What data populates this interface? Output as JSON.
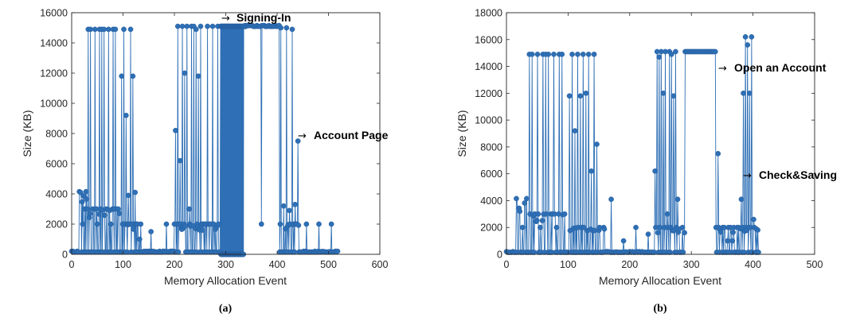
{
  "chart_data": [
    {
      "type": "line",
      "caption": "(a)",
      "xlabel": "Memory Allocation Event",
      "ylabel": "Size (KB)",
      "xlim": [
        0,
        600
      ],
      "ylim": [
        0,
        16000
      ],
      "xticks": [
        0,
        100,
        200,
        300,
        400,
        500,
        600
      ],
      "yticks": [
        0,
        2000,
        4000,
        6000,
        8000,
        10000,
        12000,
        14000,
        16000
      ],
      "marker": "filled-circle",
      "color": "#2e6fb5",
      "annotations": [
        {
          "text": "Signing-In",
          "arrow": "→",
          "x": 295,
          "y": 15700
        },
        {
          "text": "Account Page",
          "arrow": "→",
          "x": 440,
          "y": 7900
        }
      ],
      "series": [
        {
          "segments": [
            {
              "x0": 0,
              "x1": 15,
              "y0": 0,
              "y1": 200,
              "peaks": []
            },
            {
              "x0": 15,
              "x1": 30,
              "y0": 0,
              "y1": 4150,
              "peaks": [
                4100,
                2000,
                3000
              ]
            },
            {
              "x0": 30,
              "x1": 95,
              "y0": 0,
              "y1": 3000,
              "peaks": [
                14900,
                14900,
                3000,
                14900,
                2000,
                14900,
                14900,
                14900,
                3000,
                14900,
                2000,
                14900,
                14900
              ]
            },
            {
              "x0": 95,
              "x1": 140,
              "y0": 0,
              "y1": 2000,
              "peaks": [
                11800,
                14900,
                9200,
                3900,
                14900,
                11800,
                4100,
                2000,
                1000
              ]
            },
            {
              "x0": 140,
              "x1": 200,
              "y0": 0,
              "y1": 200,
              "peaks": [
                1500,
                2000
              ]
            },
            {
              "x0": 200,
              "x1": 260,
              "y0": 0,
              "y1": 2000,
              "peaks": [
                8200,
                15100,
                6200,
                15100,
                12000,
                15100,
                3000,
                15100,
                15100,
                14900,
                11800,
                15100
              ]
            },
            {
              "x0": 260,
              "x1": 290,
              "y0": 0,
              "y1": 2000,
              "peaks": [
                15100,
                15100,
                15100
              ]
            },
            {
              "x0": 290,
              "x1": 335,
              "y0": 0,
              "y1": 15100,
              "dense": true
            },
            {
              "x0": 335,
              "x1": 405,
              "y0": 15000,
              "y1": 15100,
              "peaks": [
                2000
              ]
            },
            {
              "x0": 405,
              "x1": 445,
              "y0": 0,
              "y1": 2000,
              "peaks": [
                15000,
                3200,
                15000,
                2900,
                14900,
                3300,
                7500
              ]
            },
            {
              "x0": 445,
              "x1": 520,
              "y0": 0,
              "y1": 200,
              "peaks": [
                2000,
                2000,
                2000
              ]
            }
          ]
        }
      ]
    },
    {
      "type": "line",
      "caption": "(b)",
      "xlabel": "Memory Allocation Event",
      "ylabel": "Size (KB)",
      "xlim": [
        0,
        500
      ],
      "ylim": [
        0,
        18000
      ],
      "xticks": [
        0,
        100,
        200,
        300,
        400,
        500
      ],
      "yticks": [
        0,
        2000,
        4000,
        6000,
        8000,
        10000,
        12000,
        14000,
        16000,
        18000
      ],
      "marker": "filled-circle",
      "color": "#2e6fb5",
      "annotations": [
        {
          "text": "Open an Account",
          "arrow": "→",
          "x": 345,
          "y": 14200
        },
        {
          "text": "Check&Saving",
          "arrow": "→",
          "x": 385,
          "y": 5900
        }
      ],
      "series": [
        {
          "segments": [
            {
              "x0": 0,
              "x1": 15,
              "y0": 0,
              "y1": 200,
              "peaks": []
            },
            {
              "x0": 15,
              "x1": 35,
              "y0": 0,
              "y1": 4150,
              "peaks": [
                4100,
                3200,
                2000,
                3800
              ]
            },
            {
              "x0": 35,
              "x1": 100,
              "y0": 0,
              "y1": 3000,
              "peaks": [
                14900,
                14900,
                3000,
                14900,
                2000,
                14900,
                14900,
                14900,
                3000,
                14900,
                2000,
                14900,
                14900
              ]
            },
            {
              "x0": 100,
              "x1": 160,
              "y0": 0,
              "y1": 2000,
              "peaks": [
                11800,
                14900,
                9200,
                14900,
                11800,
                14900,
                12000,
                14900,
                6200,
                14900,
                8200
              ]
            },
            {
              "x0": 160,
              "x1": 240,
              "y0": 0,
              "y1": 200,
              "peaks": [
                4100,
                1000,
                2000,
                1500
              ]
            },
            {
              "x0": 240,
              "x1": 290,
              "y0": 0,
              "y1": 2000,
              "peaks": [
                6200,
                15100,
                14700,
                15100,
                12000,
                15100,
                3000,
                15100,
                14900,
                11800,
                15100,
                4100
              ]
            },
            {
              "x0": 290,
              "x1": 340,
              "y0": 15100,
              "y1": 15100,
              "peaks": []
            },
            {
              "x0": 340,
              "x1": 380,
              "y0": 0,
              "y1": 2000,
              "peaks": [
                7500,
                2000,
                1000,
                1000,
                2000
              ]
            },
            {
              "x0": 380,
              "x1": 410,
              "y0": 0,
              "y1": 2000,
              "peaks": [
                4100,
                12000,
                16200,
                15600,
                12000,
                16200,
                2600
              ]
            }
          ]
        }
      ]
    }
  ]
}
